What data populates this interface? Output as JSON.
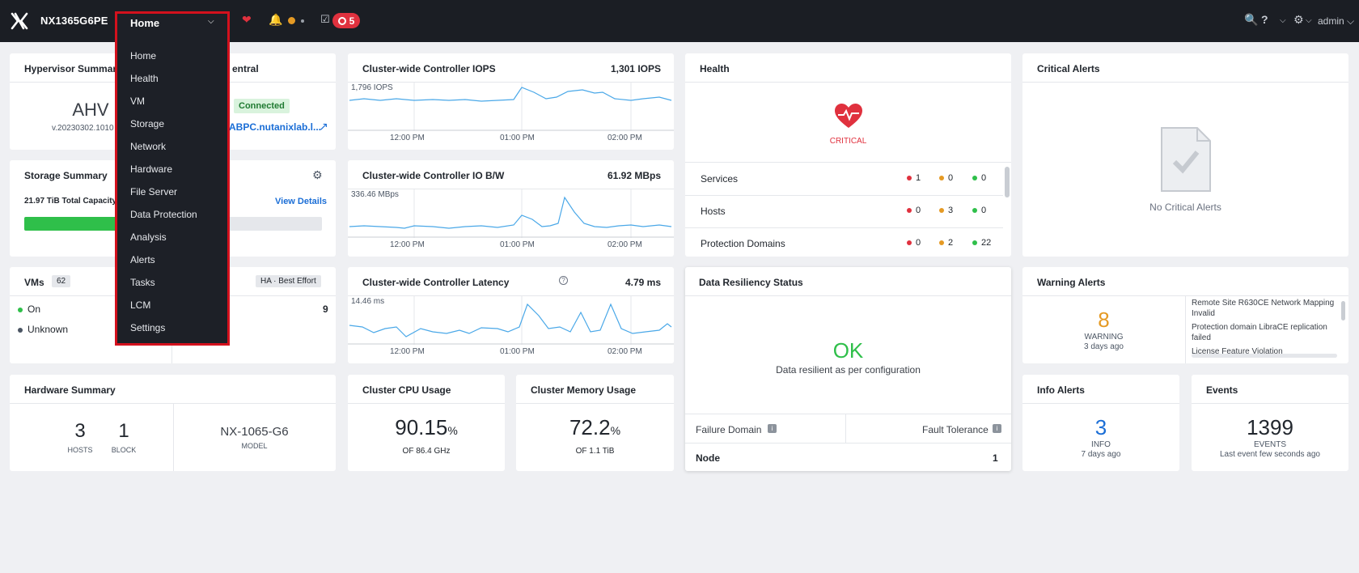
{
  "topbar": {
    "cluster_name": "NX1365G6PE",
    "nav_label": "Home",
    "alert_count": "5",
    "user": "admin"
  },
  "menu": {
    "items": [
      "Home",
      "Health",
      "VM",
      "Storage",
      "Network",
      "Hardware",
      "File Server",
      "Data Protection",
      "Analysis",
      "Alerts",
      "Tasks",
      "LCM",
      "Settings"
    ]
  },
  "hypervisor": {
    "title": "Hypervisor Summary",
    "name": "AHV",
    "version": "v.20230302.1010",
    "central_title": "entral",
    "status": "Connected",
    "link": "ABPC.nutanixlab.l..."
  },
  "storage": {
    "title": "Storage Summary",
    "capacity": "21.97 TiB",
    "capacity_label": "Total Capacity",
    "view_details": "View Details",
    "used_fraction": 0.45
  },
  "vms": {
    "title": "VMs",
    "count": "62",
    "ha": "HA · Best Effort",
    "on_label": "On",
    "on_count": "9",
    "unknown_label": "Unknown"
  },
  "hardware": {
    "title": "Hardware Summary",
    "hosts": "3",
    "hosts_label": "HOSTS",
    "blocks": "1",
    "blocks_label": "BLOCK",
    "model": "NX-1065-G6",
    "model_label": "MODEL"
  },
  "iops": {
    "title": "Cluster-wide Controller IOPS",
    "value": "1,301 IOPS",
    "peak": "1,796 IOPS",
    "ticks": [
      "12:00 PM",
      "01:00 PM",
      "02:00 PM"
    ]
  },
  "bw": {
    "title": "Cluster-wide Controller IO B/W",
    "value": "61.92 MBps",
    "peak": "336.46 MBps",
    "ticks": [
      "12:00 PM",
      "01:00 PM",
      "02:00 PM"
    ]
  },
  "latency": {
    "title": "Cluster-wide Controller Latency",
    "value": "4.79 ms",
    "peak": "14.46 ms",
    "ticks": [
      "12:00 PM",
      "01:00 PM",
      "02:00 PM"
    ]
  },
  "cpu": {
    "title": "Cluster CPU Usage",
    "value": "90.15",
    "unit": "%",
    "sub": "OF 86.4 GHz"
  },
  "memory": {
    "title": "Cluster Memory Usage",
    "value": "72.2",
    "unit": "%",
    "sub": "OF 1.1 TiB"
  },
  "health": {
    "title": "Health",
    "status": "CRITICAL",
    "rows": [
      {
        "label": "Services",
        "red": "1",
        "yellow": "0",
        "green": "0"
      },
      {
        "label": "Hosts",
        "red": "0",
        "yellow": "3",
        "green": "0"
      },
      {
        "label": "Protection Domains",
        "red": "0",
        "yellow": "2",
        "green": "22"
      }
    ]
  },
  "resiliency": {
    "title": "Data Resiliency Status",
    "status": "OK",
    "message": "Data resilient as per configuration",
    "col1": "Failure Domain",
    "col2": "Fault Tolerance",
    "row_label": "Node",
    "row_value": "1"
  },
  "critical": {
    "title": "Critical Alerts",
    "empty": "No Critical Alerts"
  },
  "warning": {
    "title": "Warning Alerts",
    "count": "8",
    "label": "WARNING",
    "age": "3 days ago",
    "items": [
      "Remote Site R630CE Network Mapping Invalid",
      "Protection domain LibraCE replication failed",
      "License Feature Violation"
    ]
  },
  "info": {
    "title": "Info Alerts",
    "count": "3",
    "label": "INFO",
    "age": "7 days ago"
  },
  "events": {
    "title": "Events",
    "count": "1399",
    "label": "EVENTS",
    "age": "Last event few seconds ago"
  },
  "colors": {
    "topbar": "#1b1e24",
    "critical": "#e0313e",
    "ok": "#2fbf4a",
    "warning": "#e59a24",
    "info": "#1b6ed6",
    "spark": "#4aa8e8"
  }
}
